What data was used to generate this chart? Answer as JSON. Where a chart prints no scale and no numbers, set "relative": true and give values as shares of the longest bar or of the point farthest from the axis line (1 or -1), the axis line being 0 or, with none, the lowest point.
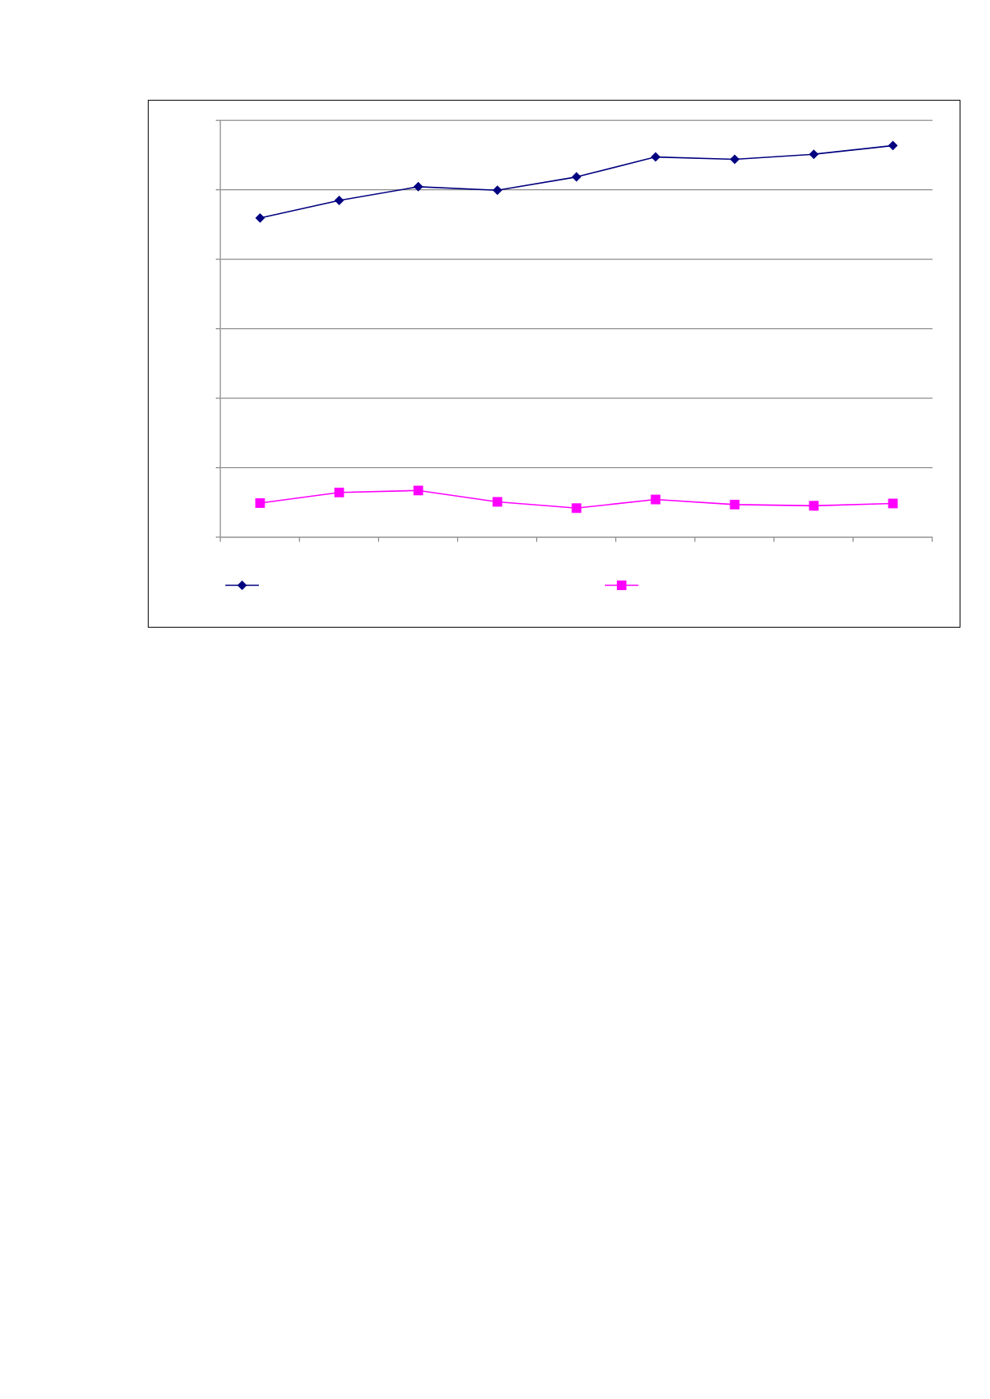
{
  "chart_data": {
    "type": "line",
    "relative": true,
    "grid": "y",
    "categories": [
      null,
      null,
      null,
      null,
      null,
      null,
      null,
      null,
      null
    ],
    "series": [
      {
        "color": "#000080",
        "marker": "diamond",
        "values": [
          0.815,
          0.86,
          0.895,
          0.886,
          0.92,
          0.971,
          0.965,
          0.978,
          1
        ]
      },
      {
        "color": "#ff00ff",
        "marker": "square",
        "values": [
          0.087,
          0.114,
          0.119,
          0.09,
          0.074,
          0.096,
          0.083,
          0.08,
          0.086
        ]
      }
    ]
  }
}
